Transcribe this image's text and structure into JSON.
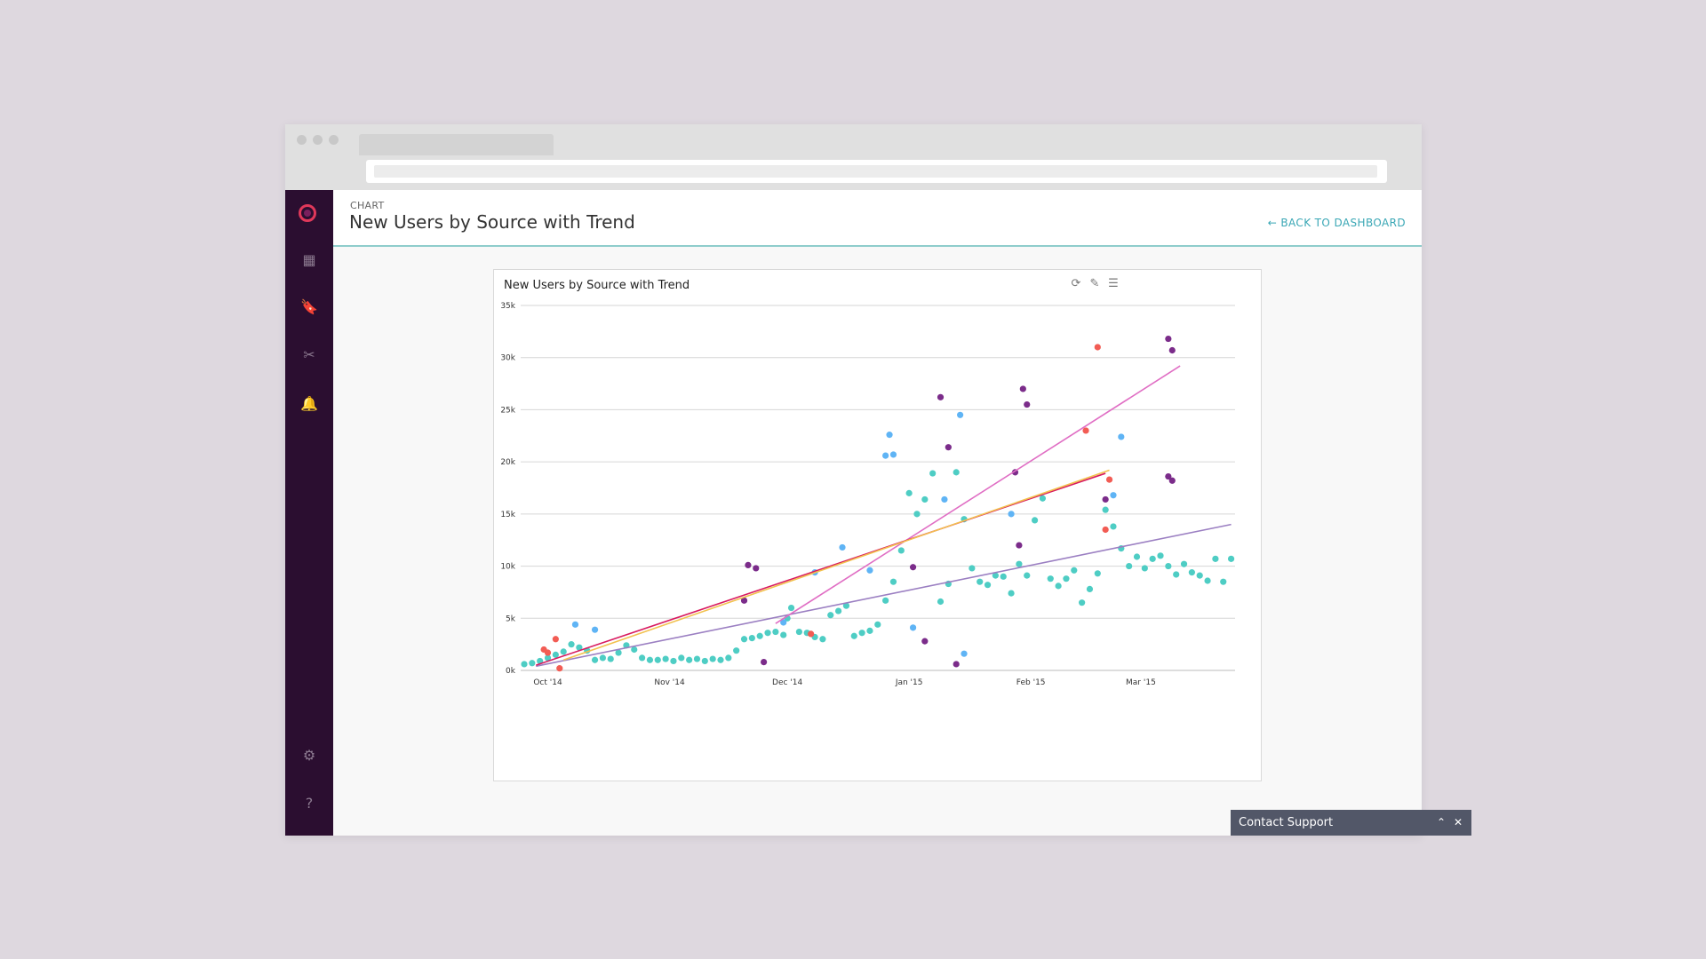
{
  "app": {
    "breadcrumb": "CHART",
    "title": "New Users by Source with Trend",
    "back_label": "BACK TO DASHBOARD",
    "support_label": "Contact Support"
  },
  "sidebar": {
    "items": [
      {
        "name": "dashboard-icon",
        "glyph": "▦"
      },
      {
        "name": "bookmark-icon",
        "glyph": "🔖"
      },
      {
        "name": "tools-icon",
        "glyph": "✂"
      },
      {
        "name": "bell-icon",
        "glyph": "🔔"
      },
      {
        "name": "gear-icon",
        "glyph": "⚙"
      },
      {
        "name": "help-icon",
        "glyph": "?"
      }
    ]
  },
  "colors": {
    "accent": "#3aa7b5",
    "sidebar": "#2b0e30",
    "teal": "#4ecdc4",
    "blue": "#5fb4f5",
    "purple": "#7b2c8a",
    "red": "#f25c54",
    "trend_purple": "#9b7fc2",
    "trend_pink": "#e06ec4",
    "trend_red": "#d81b60",
    "trend_yellow": "#f2c14e"
  },
  "chart_data": {
    "type": "scatter",
    "title": "New Users by Source with Trend",
    "xlabel": "",
    "ylabel": "",
    "x_tick_labels": [
      "Oct '14",
      "Nov '14",
      "Dec '14",
      "Jan '15",
      "Feb '15",
      "Mar '15"
    ],
    "x_ticks": [
      "2014-10-01",
      "2014-11-01",
      "2014-12-01",
      "2015-01-01",
      "2015-02-01",
      "2015-03-01"
    ],
    "y_tick_labels": [
      "0k",
      "5k",
      "10k",
      "15k",
      "20k",
      "25k",
      "30k",
      "35k"
    ],
    "ylim": [
      0,
      35000
    ],
    "xlim": [
      "2014-09-25",
      "2015-03-25"
    ],
    "grid": true,
    "series": [
      {
        "color": "#4ecdc4",
        "points": [
          [
            "2014-09-25",
            600
          ],
          [
            "2014-09-27",
            700
          ],
          [
            "2014-09-29",
            900
          ],
          [
            "2014-10-01",
            1200
          ],
          [
            "2014-10-03",
            1500
          ],
          [
            "2014-10-05",
            1800
          ],
          [
            "2014-10-07",
            2500
          ],
          [
            "2014-10-09",
            2200
          ],
          [
            "2014-10-11",
            1900
          ],
          [
            "2014-10-13",
            1000
          ],
          [
            "2014-10-15",
            1200
          ],
          [
            "2014-10-17",
            1100
          ],
          [
            "2014-10-19",
            1700
          ],
          [
            "2014-10-21",
            2400
          ],
          [
            "2014-10-23",
            2000
          ],
          [
            "2014-10-25",
            1200
          ],
          [
            "2014-10-27",
            1000
          ],
          [
            "2014-10-29",
            1000
          ],
          [
            "2014-10-31",
            1100
          ],
          [
            "2014-11-02",
            900
          ],
          [
            "2014-11-04",
            1200
          ],
          [
            "2014-11-06",
            1000
          ],
          [
            "2014-11-08",
            1100
          ],
          [
            "2014-11-10",
            900
          ],
          [
            "2014-11-12",
            1100
          ],
          [
            "2014-11-14",
            1000
          ],
          [
            "2014-11-16",
            1200
          ],
          [
            "2014-11-18",
            1900
          ],
          [
            "2014-11-20",
            3000
          ],
          [
            "2014-11-22",
            3100
          ],
          [
            "2014-11-24",
            3300
          ],
          [
            "2014-11-26",
            3600
          ],
          [
            "2014-11-28",
            3700
          ],
          [
            "2014-11-30",
            3400
          ],
          [
            "2014-12-01",
            5000
          ],
          [
            "2014-12-02",
            6000
          ],
          [
            "2014-12-04",
            3700
          ],
          [
            "2014-12-06",
            3600
          ],
          [
            "2014-12-08",
            3200
          ],
          [
            "2014-12-10",
            3000
          ],
          [
            "2014-12-12",
            5300
          ],
          [
            "2014-12-14",
            5700
          ],
          [
            "2014-12-16",
            6200
          ],
          [
            "2014-12-18",
            3300
          ],
          [
            "2014-12-20",
            3600
          ],
          [
            "2014-12-22",
            3800
          ],
          [
            "2014-12-24",
            4400
          ],
          [
            "2014-12-26",
            6700
          ],
          [
            "2014-12-28",
            8500
          ],
          [
            "2014-12-30",
            11500
          ],
          [
            "2015-01-01",
            17000
          ],
          [
            "2015-01-03",
            15000
          ],
          [
            "2015-01-05",
            16400
          ],
          [
            "2015-01-07",
            18900
          ],
          [
            "2015-01-09",
            6600
          ],
          [
            "2015-01-11",
            8300
          ],
          [
            "2015-01-13",
            19000
          ],
          [
            "2015-01-15",
            14500
          ],
          [
            "2015-01-17",
            9800
          ],
          [
            "2015-01-19",
            8500
          ],
          [
            "2015-01-21",
            8200
          ],
          [
            "2015-01-23",
            9100
          ],
          [
            "2015-01-25",
            9000
          ],
          [
            "2015-01-27",
            7400
          ],
          [
            "2015-01-29",
            10200
          ],
          [
            "2015-01-31",
            9100
          ],
          [
            "2015-02-02",
            14400
          ],
          [
            "2015-02-04",
            16500
          ],
          [
            "2015-02-06",
            8800
          ],
          [
            "2015-02-08",
            8100
          ],
          [
            "2015-02-10",
            8800
          ],
          [
            "2015-02-12",
            9600
          ],
          [
            "2015-02-14",
            6500
          ],
          [
            "2015-02-16",
            7800
          ],
          [
            "2015-02-18",
            9300
          ],
          [
            "2015-02-20",
            15400
          ],
          [
            "2015-02-22",
            13800
          ],
          [
            "2015-02-24",
            11700
          ],
          [
            "2015-02-26",
            10000
          ],
          [
            "2015-02-28",
            10900
          ],
          [
            "2015-03-02",
            9800
          ],
          [
            "2015-03-04",
            10700
          ],
          [
            "2015-03-06",
            11000
          ],
          [
            "2015-03-08",
            10000
          ],
          [
            "2015-03-10",
            9200
          ],
          [
            "2015-03-12",
            10200
          ],
          [
            "2015-03-14",
            9400
          ],
          [
            "2015-03-16",
            9100
          ],
          [
            "2015-03-18",
            8600
          ],
          [
            "2015-03-20",
            10700
          ],
          [
            "2015-03-22",
            8500
          ],
          [
            "2015-03-24",
            10700
          ]
        ]
      },
      {
        "color": "#5fb4f5",
        "points": [
          [
            "2014-10-08",
            4400
          ],
          [
            "2014-10-13",
            3900
          ],
          [
            "2014-11-30",
            4600
          ],
          [
            "2014-12-08",
            9400
          ],
          [
            "2014-12-15",
            11800
          ],
          [
            "2014-12-22",
            9600
          ],
          [
            "2014-12-26",
            20600
          ],
          [
            "2014-12-27",
            22600
          ],
          [
            "2014-12-28",
            20700
          ],
          [
            "2015-01-02",
            4100
          ],
          [
            "2015-01-10",
            16400
          ],
          [
            "2015-01-14",
            24500
          ],
          [
            "2015-01-15",
            1600
          ],
          [
            "2015-01-27",
            15000
          ],
          [
            "2015-02-24",
            22400
          ],
          [
            "2015-02-22",
            16800
          ]
        ]
      },
      {
        "color": "#7b2c8a",
        "points": [
          [
            "2014-11-20",
            6700
          ],
          [
            "2014-11-21",
            10100
          ],
          [
            "2014-11-23",
            9800
          ],
          [
            "2014-11-25",
            800
          ],
          [
            "2015-01-02",
            9900
          ],
          [
            "2015-01-05",
            2800
          ],
          [
            "2015-01-09",
            26200
          ],
          [
            "2015-01-11",
            21400
          ],
          [
            "2015-01-13",
            600
          ],
          [
            "2015-01-28",
            19000
          ],
          [
            "2015-01-29",
            12000
          ],
          [
            "2015-01-30",
            27000
          ],
          [
            "2015-01-31",
            25500
          ],
          [
            "2015-02-20",
            16400
          ],
          [
            "2015-03-08",
            31800
          ],
          [
            "2015-03-09",
            30700
          ],
          [
            "2015-03-08",
            18600
          ],
          [
            "2015-03-09",
            18200
          ]
        ]
      },
      {
        "color": "#f25c54",
        "points": [
          [
            "2014-09-30",
            2000
          ],
          [
            "2014-10-01",
            1700
          ],
          [
            "2014-10-03",
            3000
          ],
          [
            "2014-10-04",
            200
          ],
          [
            "2014-12-07",
            3500
          ],
          [
            "2015-02-15",
            23000
          ],
          [
            "2015-02-18",
            31000
          ],
          [
            "2015-02-20",
            13500
          ],
          [
            "2015-02-21",
            18300
          ]
        ]
      }
    ],
    "trendlines": [
      {
        "color": "#9b7fc2",
        "from": [
          "2014-09-28",
          400
        ],
        "to": [
          "2015-03-24",
          14000
        ]
      },
      {
        "color": "#e06ec4",
        "from": [
          "2014-11-28",
          4500
        ],
        "to": [
          "2015-03-11",
          29200
        ]
      },
      {
        "color": "#d81b60",
        "from": [
          "2014-09-28",
          500
        ],
        "to": [
          "2015-02-20",
          18900
        ]
      },
      {
        "color": "#f2c14e",
        "from": [
          "2014-10-05",
          1000
        ],
        "to": [
          "2015-02-21",
          19200
        ]
      }
    ]
  }
}
